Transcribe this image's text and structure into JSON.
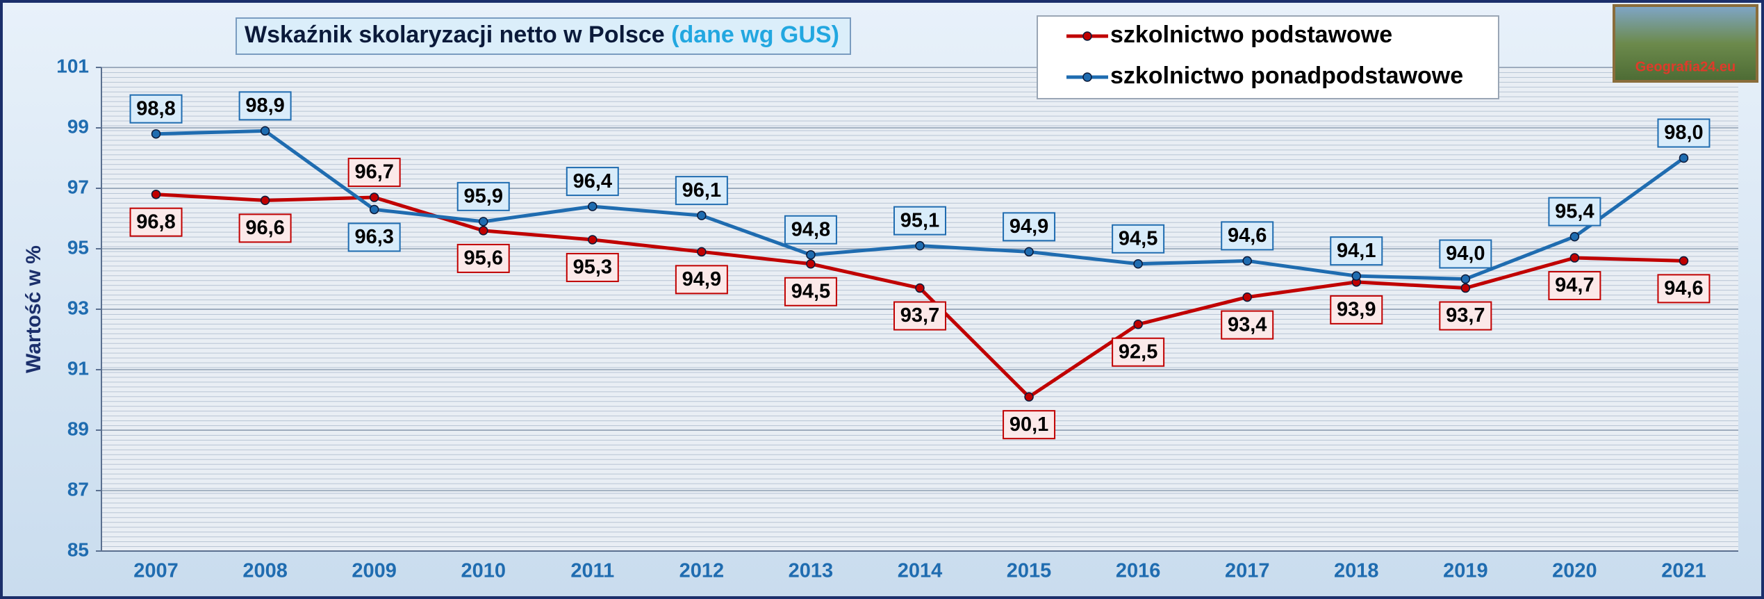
{
  "chart_data": {
    "type": "line",
    "title": "Wskaźnik skolaryzacji netto w Polsce",
    "subtitle": "(dane wg GUS)",
    "y_label": "Wartość w %",
    "categories": [
      "2007",
      "2008",
      "2009",
      "2010",
      "2011",
      "2012",
      "2013",
      "2014",
      "2015",
      "2016",
      "2017",
      "2018",
      "2019",
      "2020",
      "2021"
    ],
    "series": [
      {
        "name": "szkolnictwo podstawowe",
        "color": "#c00000",
        "values": [
          96.8,
          96.6,
          96.7,
          95.6,
          95.3,
          94.9,
          94.5,
          93.7,
          90.1,
          92.5,
          93.4,
          93.9,
          93.7,
          94.7,
          94.6
        ],
        "value_labels": [
          "96,8",
          "96,6",
          "96,7",
          "95,6",
          "95,3",
          "94,9",
          "94,5",
          "93,7",
          "90,1",
          "92,5",
          "93,4",
          "93,9",
          "93,7",
          "94,7",
          "94,6"
        ]
      },
      {
        "name": "szkolnictwo ponadpodstawowe",
        "color": "#1f6cb0",
        "values": [
          98.8,
          98.9,
          96.3,
          95.9,
          96.4,
          96.1,
          94.8,
          95.1,
          94.9,
          94.5,
          94.6,
          94.1,
          94.0,
          95.4,
          98.0
        ],
        "value_labels": [
          "98,8",
          "98,9",
          "96,3",
          "95,9",
          "96,4",
          "96,1",
          "94,8",
          "95,1",
          "94,9",
          "94,5",
          "94,6",
          "94,1",
          "94,0",
          "95,4",
          "98,0"
        ]
      }
    ],
    "ylim": [
      85,
      101
    ],
    "yticks": [
      85,
      87,
      89,
      91,
      93,
      95,
      97,
      99,
      101
    ],
    "grid": true
  },
  "logo": {
    "text": "Geografia24.eu"
  }
}
